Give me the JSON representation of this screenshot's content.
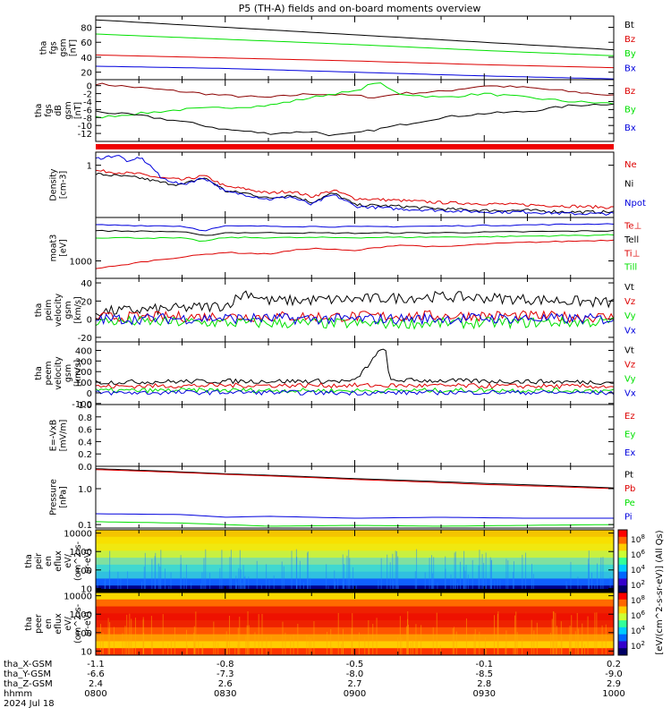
{
  "title": "P5 (TH-A) fields and on-board moments overview",
  "colors": {
    "black": "#000000",
    "red": "#dd0000",
    "green": "#00e000",
    "blue": "#0000dd",
    "darkred": "#8b0000"
  },
  "chart_data": [
    {
      "type": "line",
      "id": "fgs-mag",
      "ylabel": [
        "tha",
        "fgs",
        "gsm",
        "[nT]"
      ],
      "ylim": [
        10,
        95
      ],
      "yticks": [
        20,
        40,
        60,
        80
      ],
      "series": [
        {
          "name": "Bt",
          "color": "black",
          "x": [
            0,
            30,
            60,
            90,
            120
          ],
          "values": [
            90,
            80,
            70,
            60,
            50
          ]
        },
        {
          "name": "Bz",
          "color": "red",
          "x": [
            0,
            30,
            60,
            90,
            120
          ],
          "values": [
            43,
            39,
            35,
            30,
            26
          ]
        },
        {
          "name": "By",
          "color": "green",
          "x": [
            0,
            30,
            60,
            90,
            120
          ],
          "values": [
            71,
            64,
            57,
            49,
            42
          ]
        },
        {
          "name": "Bx",
          "color": "blue",
          "x": [
            0,
            30,
            60,
            90,
            120
          ],
          "values": [
            28,
            25,
            20,
            15,
            11
          ]
        }
      ]
    },
    {
      "type": "line",
      "id": "fgs-dB",
      "ylabel": [
        "tha",
        "fgs",
        "dB",
        "gsm",
        "[nT]"
      ],
      "ylim": [
        -14,
        1.5
      ],
      "yticks": [
        0,
        -2,
        -4,
        -6,
        -8,
        -10,
        -12
      ],
      "series": [
        {
          "name": "Bz",
          "color": "darkred",
          "x": [
            0,
            10,
            20,
            30,
            40,
            50,
            60,
            65,
            70,
            80,
            90,
            100,
            110,
            120
          ],
          "values": [
            0.5,
            -0.5,
            -1.5,
            -2.5,
            -3.0,
            -2.0,
            -2.5,
            -3.0,
            -2.0,
            -1.5,
            0,
            -0.5,
            -1.5,
            -2.5
          ]
        },
        {
          "name": "By",
          "color": "green",
          "x": [
            0,
            10,
            20,
            30,
            40,
            50,
            55,
            60,
            65,
            70,
            80,
            90,
            100,
            110,
            120
          ],
          "values": [
            -8,
            -7,
            -6,
            -5.5,
            -5,
            -3,
            -2,
            -1.5,
            1,
            -2,
            -3,
            -2,
            -3,
            -4,
            -4.5
          ]
        },
        {
          "name": "Bx",
          "color": "black",
          "x": [
            0,
            10,
            20,
            30,
            40,
            50,
            55,
            60,
            65,
            70,
            80,
            90,
            100,
            110,
            120
          ],
          "values": [
            -6.5,
            -7.5,
            -9,
            -11,
            -12,
            -11.5,
            -12.5,
            -12,
            -11,
            -10,
            -8,
            -7,
            -6.5,
            -5,
            -4.5
          ]
        }
      ]
    },
    {
      "type": "line",
      "id": "density",
      "ylabel": [
        "Density",
        "[cm-3]"
      ],
      "scale": "log",
      "ylim": [
        0.12,
        1.7
      ],
      "yticks": [
        1
      ],
      "series": [
        {
          "name": "Ne",
          "color": "red",
          "x": [
            0,
            5,
            10,
            15,
            20,
            25,
            30,
            35,
            40,
            45,
            50,
            55,
            60,
            70,
            80,
            90,
            100,
            110,
            120
          ],
          "values": [
            0.8,
            0.75,
            0.7,
            0.6,
            0.55,
            0.65,
            0.42,
            0.38,
            0.32,
            0.35,
            0.28,
            0.36,
            0.26,
            0.24,
            0.22,
            0.21,
            0.2,
            0.19,
            0.18
          ]
        },
        {
          "name": "Ni",
          "color": "black",
          "x": [
            0,
            5,
            10,
            15,
            20,
            25,
            30,
            35,
            40,
            45,
            50,
            55,
            60,
            70,
            80,
            90,
            100,
            110,
            120
          ],
          "values": [
            0.7,
            0.65,
            0.6,
            0.5,
            0.45,
            0.6,
            0.35,
            0.32,
            0.26,
            0.3,
            0.22,
            0.32,
            0.2,
            0.19,
            0.17,
            0.16,
            0.16,
            0.15,
            0.15
          ]
        },
        {
          "name": "Npot",
          "color": "blue",
          "x": [
            0,
            5,
            8,
            10,
            15,
            20,
            25,
            30,
            35,
            40,
            45,
            50,
            55,
            60,
            70,
            80,
            90,
            100,
            110,
            120
          ],
          "values": [
            1.3,
            1.5,
            1.1,
            1.4,
            0.6,
            0.45,
            0.6,
            0.34,
            0.3,
            0.25,
            0.28,
            0.2,
            0.3,
            0.19,
            0.17,
            0.16,
            0.15,
            0.15,
            0.14,
            0.14
          ]
        }
      ]
    },
    {
      "type": "line",
      "id": "temperature",
      "ylabel": [
        "moat3",
        "[eV]"
      ],
      "scale": "log",
      "ylim": [
        300,
        20000
      ],
      "yticks": [
        1000
      ],
      "series": [
        {
          "name": "Te⊥",
          "color": "blue",
          "x": [
            0,
            20,
            25,
            30,
            40,
            60,
            80,
            100,
            120
          ],
          "values": [
            12000,
            11000,
            8000,
            11000,
            11000,
            10500,
            11000,
            12000,
            13000
          ]
        },
        {
          "name": "Tell",
          "color": "black",
          "x": [
            0,
            20,
            25,
            30,
            40,
            60,
            80,
            100,
            120
          ],
          "values": [
            8000,
            7500,
            5500,
            7000,
            7000,
            6800,
            7000,
            7500,
            8000
          ]
        },
        {
          "name": "Ti⊥",
          "color": "red",
          "x": [
            0,
            5,
            10,
            20,
            30,
            40,
            50,
            60,
            70,
            80,
            90,
            100,
            120
          ],
          "values": [
            600,
            700,
            900,
            1300,
            1800,
            1600,
            2400,
            2000,
            3000,
            2600,
            3200,
            3600,
            4200
          ]
        },
        {
          "name": "Till",
          "color": "green",
          "x": [
            0,
            20,
            25,
            30,
            60,
            90,
            120
          ],
          "values": [
            5000,
            4800,
            3800,
            5000,
            5000,
            5300,
            6000
          ]
        }
      ]
    },
    {
      "type": "line",
      "id": "peim-velocity",
      "ylabel": [
        "tha",
        "peim",
        "velocity",
        "gsm",
        "[km/s]"
      ],
      "ylim": [
        -25,
        45
      ],
      "yticks": [
        40,
        20,
        0,
        -20
      ],
      "series": [
        {
          "name": "Vt",
          "color": "black",
          "x": [
            0,
            20,
            30,
            35,
            40,
            60,
            80,
            100,
            120
          ],
          "values": [
            8,
            12,
            15,
            30,
            20,
            22,
            25,
            22,
            18
          ]
        },
        {
          "name": "Vz",
          "color": "red",
          "x": [
            0,
            30,
            60,
            90,
            120
          ],
          "values": [
            2,
            3,
            3,
            4,
            2
          ]
        },
        {
          "name": "Vy",
          "color": "green",
          "x": [
            0,
            30,
            60,
            90,
            120
          ],
          "values": [
            -2,
            -4,
            -5,
            -4,
            -3
          ]
        },
        {
          "name": "Vx",
          "color": "blue",
          "x": [
            0,
            30,
            60,
            90,
            120
          ],
          "values": [
            0,
            1,
            0,
            1,
            0
          ]
        }
      ]
    },
    {
      "type": "line",
      "id": "peem-velocity",
      "ylabel": [
        "tha",
        "peem",
        "velocity",
        "gsm",
        "[km/s]"
      ],
      "ylim": [
        -110,
        480
      ],
      "yticks": [
        400,
        300,
        200,
        100,
        0,
        -100
      ],
      "series": [
        {
          "name": "Vt",
          "color": "black",
          "x": [
            0,
            30,
            60,
            67,
            68,
            90,
            120
          ],
          "values": [
            100,
            110,
            110,
            450,
            120,
            110,
            100
          ]
        },
        {
          "name": "Vz",
          "color": "red",
          "x": [
            0,
            30,
            60,
            90,
            120
          ],
          "values": [
            60,
            70,
            70,
            65,
            60
          ]
        },
        {
          "name": "Vy",
          "color": "green",
          "x": [
            0,
            30,
            60,
            90,
            120
          ],
          "values": [
            20,
            25,
            20,
            25,
            20
          ]
        },
        {
          "name": "Vx",
          "color": "blue",
          "x": [
            0,
            30,
            60,
            90,
            120
          ],
          "values": [
            0,
            5,
            0,
            5,
            0
          ]
        }
      ]
    },
    {
      "type": "line",
      "id": "efield",
      "ylabel": [
        "E=-VxB",
        "[mV/m]"
      ],
      "ylim": [
        0,
        1
      ],
      "yticks": [
        0.0,
        0.2,
        0.4,
        0.6,
        0.8,
        1.0
      ],
      "series": [
        {
          "name": "Ez",
          "color": "red",
          "x": [],
          "values": []
        },
        {
          "name": "Ey",
          "color": "green",
          "x": [],
          "values": []
        },
        {
          "name": "Ex",
          "color": "blue",
          "x": [],
          "values": []
        }
      ]
    },
    {
      "type": "line",
      "id": "pressure",
      "ylabel": [
        "Pressure",
        "[nPa]"
      ],
      "scale": "log",
      "ylim": [
        0.08,
        4.2
      ],
      "yticks": [
        1.0,
        0.1
      ],
      "series": [
        {
          "name": "Pt",
          "color": "black",
          "x": [
            0,
            30,
            60,
            90,
            120
          ],
          "values": [
            3.6,
            2.6,
            1.9,
            1.4,
            1.05
          ]
        },
        {
          "name": "Pb",
          "color": "red",
          "x": [
            0,
            30,
            60,
            90,
            120
          ],
          "values": [
            3.4,
            2.5,
            1.8,
            1.3,
            1.0
          ]
        },
        {
          "name": "Pe",
          "color": "green",
          "x": [
            0,
            20,
            30,
            40,
            60,
            80,
            100,
            120
          ],
          "values": [
            0.12,
            0.11,
            0.1,
            0.09,
            0.095,
            0.09,
            0.095,
            0.1
          ]
        },
        {
          "name": "Pi",
          "color": "blue",
          "x": [
            0,
            20,
            30,
            40,
            60,
            80,
            100,
            120
          ],
          "values": [
            0.2,
            0.19,
            0.16,
            0.17,
            0.15,
            0.16,
            0.15,
            0.15
          ]
        }
      ]
    },
    {
      "type": "heatmap",
      "id": "peir-spectrogram",
      "ylabel": [
        "tha",
        "peir",
        "en",
        "eflux",
        "eV/",
        "(cm^2-s-",
        "sr-eV)"
      ],
      "scale": "log",
      "ylim": [
        6,
        15000
      ],
      "yticks": [
        10000,
        1000,
        100,
        10
      ]
    },
    {
      "type": "heatmap",
      "id": "peer-spectrogram",
      "ylabel": [
        "tha",
        "peer",
        "en",
        "eflux",
        "eV/",
        "(cm^2-s-",
        "sr-eV)"
      ],
      "scale": "log",
      "ylim": [
        6,
        15000
      ],
      "yticks": [
        10000,
        1000,
        100,
        10
      ]
    }
  ],
  "colorbar": {
    "label": "[eV/(cm^2-s-sr-eV)] (All Qs)",
    "ticks": [
      "10^8",
      "10^6",
      "10^4",
      "10^2",
      "10^8",
      "10^6",
      "10^4",
      "10^2"
    ]
  },
  "x_axis": {
    "rows": [
      {
        "label": "tha_X-GSM",
        "values": [
          "-1.1",
          "-0.8",
          "-0.5",
          "-0.1",
          "0.2"
        ]
      },
      {
        "label": "tha_Y-GSM",
        "values": [
          "-6.6",
          "-7.3",
          "-8.0",
          "-8.5",
          "-9.0"
        ]
      },
      {
        "label": "tha_Z-GSM",
        "values": [
          "2.4",
          "2.6",
          "2.7",
          "2.8",
          "2.9"
        ]
      },
      {
        "label": "hhmm",
        "values": [
          "0800",
          "0830",
          "0900",
          "0930",
          "1000"
        ]
      }
    ],
    "date": "2024 Jul 18",
    "tick_minutes": [
      0,
      30,
      60,
      90,
      120
    ]
  }
}
